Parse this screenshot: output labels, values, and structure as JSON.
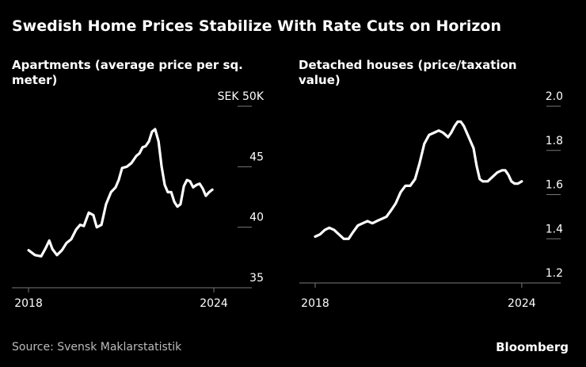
{
  "title": "Swedish Home Prices Stabilize With Rate Cuts on Horizon",
  "source": "Source: Svensk Maklarstatistik",
  "logo": "Bloomberg",
  "chart_data": [
    {
      "type": "line",
      "title": "Apartments (average price per sq. meter)",
      "color": "#ffffff",
      "x": [
        2018.0,
        2018.21,
        2018.41,
        2018.56,
        2018.67,
        2018.77,
        2018.92,
        2019.08,
        2019.23,
        2019.38,
        2019.54,
        2019.67,
        2019.79,
        2019.95,
        2020.1,
        2020.21,
        2020.36,
        2020.51,
        2020.67,
        2020.82,
        2020.92,
        2021.03,
        2021.18,
        2021.33,
        2021.49,
        2021.59,
        2021.69,
        2021.79,
        2021.9,
        2022.0,
        2022.1,
        2022.21,
        2022.31,
        2022.41,
        2022.51,
        2022.62,
        2022.72,
        2022.82,
        2022.92,
        2023.03,
        2023.13,
        2023.23,
        2023.33,
        2023.44,
        2023.54,
        2023.64,
        2023.74,
        2023.85,
        2023.95
      ],
      "values": [
        38.1,
        37.7,
        37.6,
        38.3,
        38.9,
        38.2,
        37.7,
        38.1,
        38.7,
        39.0,
        39.8,
        40.2,
        40.1,
        41.2,
        41.0,
        40.0,
        40.2,
        41.9,
        42.9,
        43.3,
        43.9,
        44.9,
        45.0,
        45.3,
        45.9,
        46.1,
        46.6,
        46.7,
        47.1,
        47.9,
        48.1,
        47.1,
        45.0,
        43.5,
        42.9,
        42.9,
        42.1,
        41.7,
        41.9,
        43.4,
        43.9,
        43.8,
        43.3,
        43.5,
        43.6,
        43.2,
        42.6,
        42.9,
        43.1
      ],
      "xlim": [
        2017.46,
        2025.23
      ],
      "xticks": [
        2018,
        2024
      ],
      "ylim": [
        35,
        50
      ],
      "yticks": [
        35,
        40,
        45,
        {
          "value": 50,
          "label": "SEK 50K"
        }
      ]
    },
    {
      "type": "line",
      "title": "Detached houses (price/taxation value)",
      "color": "#ffffff",
      "x": [
        2018.0,
        2018.14,
        2018.28,
        2018.41,
        2018.55,
        2018.69,
        2018.83,
        2018.97,
        2019.1,
        2019.24,
        2019.38,
        2019.52,
        2019.66,
        2019.79,
        2019.93,
        2020.07,
        2020.21,
        2020.34,
        2020.48,
        2020.62,
        2020.76,
        2020.9,
        2021.03,
        2021.17,
        2021.31,
        2021.45,
        2021.59,
        2021.72,
        2021.86,
        2021.95,
        2022.05,
        2022.14,
        2022.23,
        2022.32,
        2022.46,
        2022.6,
        2022.69,
        2022.78,
        2022.87,
        2023.01,
        2023.15,
        2023.29,
        2023.43,
        2023.52,
        2023.61,
        2023.7,
        2023.79,
        2023.89,
        2024.0
      ],
      "values": [
        1.41,
        1.42,
        1.44,
        1.45,
        1.44,
        1.42,
        1.4,
        1.4,
        1.43,
        1.46,
        1.47,
        1.48,
        1.47,
        1.48,
        1.49,
        1.5,
        1.53,
        1.56,
        1.61,
        1.64,
        1.64,
        1.67,
        1.74,
        1.83,
        1.87,
        1.88,
        1.89,
        1.88,
        1.86,
        1.88,
        1.91,
        1.93,
        1.93,
        1.91,
        1.86,
        1.81,
        1.73,
        1.67,
        1.66,
        1.66,
        1.68,
        1.7,
        1.71,
        1.71,
        1.69,
        1.66,
        1.65,
        1.65,
        1.66
      ],
      "xlim": [
        2017.54,
        2025.13
      ],
      "xticks": [
        2018,
        2024
      ],
      "ylim": [
        1.2,
        2.0
      ],
      "yticks": [
        {
          "value": 1.2,
          "label": "1.2"
        },
        {
          "value": 1.4,
          "label": "1.4"
        },
        {
          "value": 1.6,
          "label": "1.6"
        },
        {
          "value": 1.8,
          "label": "1.8"
        },
        {
          "value": 2.0,
          "label": "2.0"
        }
      ]
    }
  ]
}
